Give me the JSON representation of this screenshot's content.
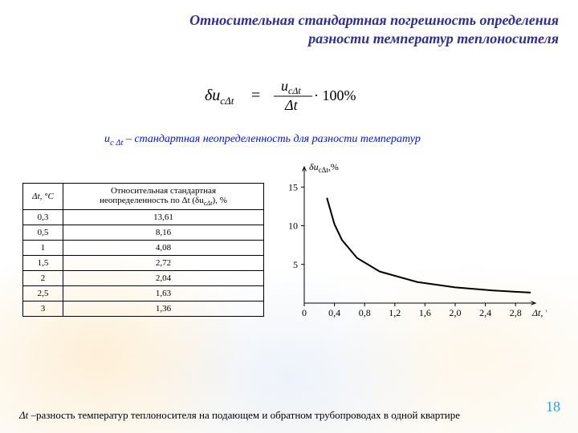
{
  "title_line1": "Относительная стандартная погрешность определения",
  "title_line2": "разности температур теплоносителя",
  "formula": {
    "lhs": "δu",
    "lhs_sub": "cΔt",
    "eq": " = ",
    "num": "u",
    "num_sub": "cΔt",
    "denom": "Δt",
    "tail": " · 100%"
  },
  "uc_def_prefix": "u",
  "uc_def_sub": "c Δt",
  "uc_def_rest": " – стандартная неопределенность для разности температур",
  "table": {
    "col1_header": "Δt, °С",
    "col2_header_line1": "Относительная стандартная",
    "col2_header_line2": "неопределенность по Δt (δu",
    "col2_header_sub": "cΔt",
    "col2_header_tail": "), %",
    "rows": [
      {
        "dt": "0,3",
        "val": "13,61"
      },
      {
        "dt": "0,5",
        "val": "8,16"
      },
      {
        "dt": "1",
        "val": "4,08"
      },
      {
        "dt": "1,5",
        "val": "2,72"
      },
      {
        "dt": "2",
        "val": "2,04"
      },
      {
        "dt": "2,5",
        "val": "1,63"
      },
      {
        "dt": "3",
        "val": "1,36"
      }
    ]
  },
  "chart": {
    "type": "line",
    "y_label": "δu",
    "y_label_sub": "cΔt",
    "y_label_unit": ",%",
    "x_label": "Δt, °С",
    "x_ticks": [
      "0",
      "0,4",
      "0,8",
      "1,2",
      "1,6",
      "2,0",
      "2,4",
      "2,8"
    ],
    "y_ticks": [
      "5",
      "10",
      "15"
    ],
    "xlim": [
      0,
      3.0
    ],
    "ylim": [
      0,
      17
    ],
    "curve_points": [
      {
        "x": 0.3,
        "y": 13.61
      },
      {
        "x": 0.4,
        "y": 10.2
      },
      {
        "x": 0.5,
        "y": 8.16
      },
      {
        "x": 0.7,
        "y": 5.83
      },
      {
        "x": 1.0,
        "y": 4.08
      },
      {
        "x": 1.5,
        "y": 2.72
      },
      {
        "x": 2.0,
        "y": 2.04
      },
      {
        "x": 2.5,
        "y": 1.63
      },
      {
        "x": 3.0,
        "y": 1.36
      }
    ],
    "curve_color": "#000000",
    "axis_color": "#000000",
    "bg_color": "transparent"
  },
  "footnote_prefix": "Δt",
  "footnote_rest": "  –разность температур теплоносителя на подающем и обратном трубопроводах в одной квартире",
  "page_number": "18"
}
